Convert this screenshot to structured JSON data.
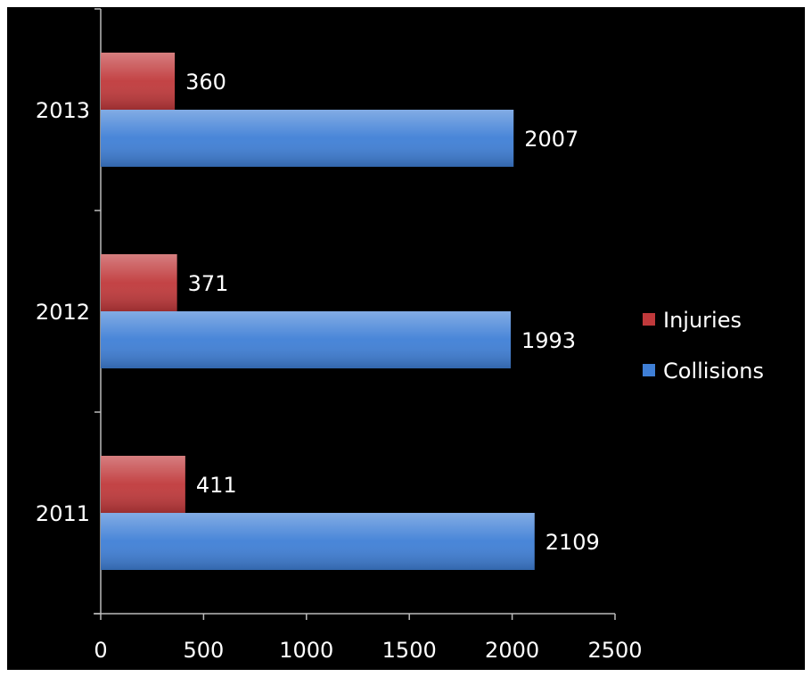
{
  "chart_data": {
    "type": "hbar",
    "categories": [
      "2011",
      "2012",
      "2013"
    ],
    "series": [
      {
        "name": "Injuries",
        "color": "#c0393b",
        "values": [
          411,
          371,
          360
        ]
      },
      {
        "name": "Collisions",
        "color": "#3f7fd6",
        "values": [
          2109,
          1993,
          2007
        ]
      }
    ],
    "xlim": [
      0,
      2500
    ],
    "xticks": [
      0,
      500,
      1000,
      1500,
      2000,
      2500
    ],
    "legend": "right",
    "grid": false
  }
}
